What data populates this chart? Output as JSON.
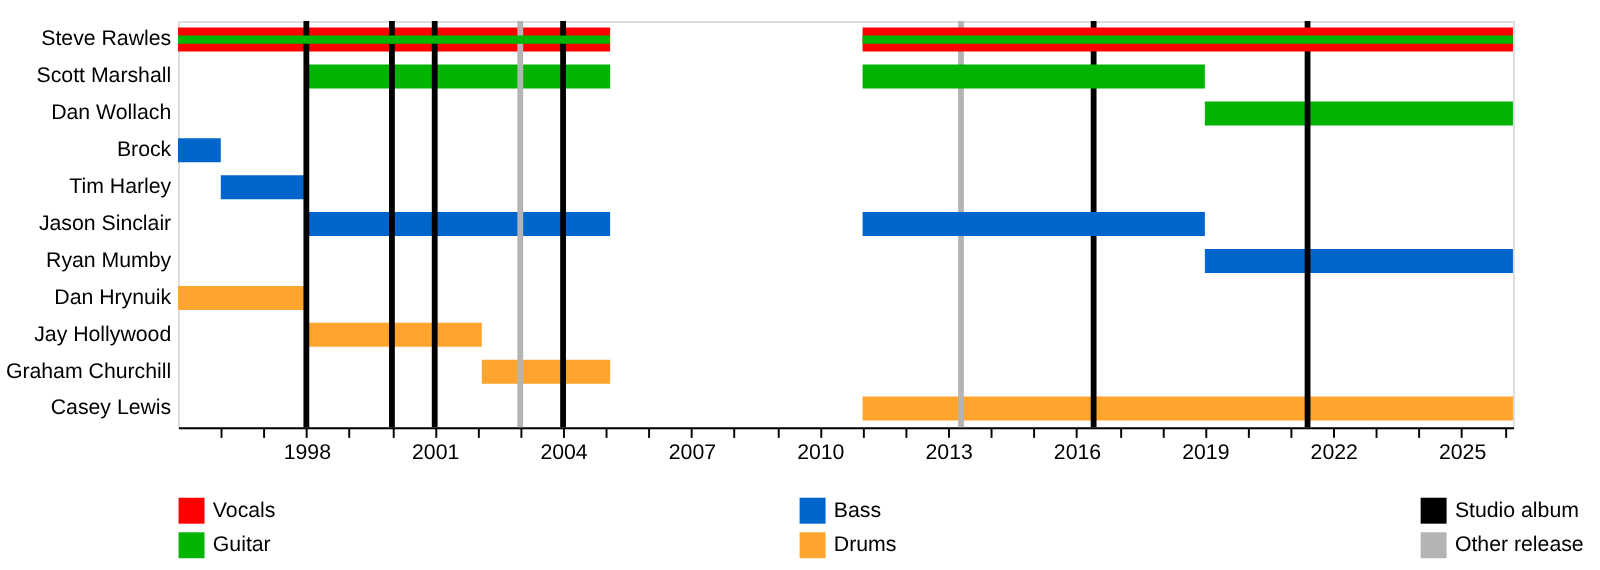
{
  "chart_data": {
    "type": "bar",
    "orientation": "horizontal",
    "legend": "bottom",
    "grid": false,
    "categories": [
      "Steve Rawles",
      "Scott Marshall",
      "Dan Wollach",
      "Brock",
      "Tim Harley",
      "Jason Sinclair",
      "Ryan Mumby",
      "Dan Hrynuik",
      "Jay Hollywood",
      "Graham Churchill",
      "Casey Lewis"
    ],
    "series": [
      {
        "name": "Vocals",
        "color": "#ff0000",
        "base": [
          1995,
          null,
          null,
          null,
          null,
          null,
          null,
          null,
          null,
          null,
          null
        ],
        "values": [
          10.1,
          null,
          null,
          null,
          null,
          null,
          null,
          null,
          null,
          null,
          null
        ]
      },
      {
        "color": "#ff0000",
        "base": [
          2011,
          null,
          null,
          null,
          null,
          null,
          null,
          null,
          null,
          null,
          null
        ],
        "values": [
          15.2,
          null,
          null,
          null,
          null,
          null,
          null,
          null,
          null,
          null,
          null
        ]
      },
      {
        "name": "Guitar",
        "color": "#00b400",
        "base": [
          1995,
          1998,
          2019,
          null,
          null,
          null,
          null,
          null,
          null,
          null,
          null
        ],
        "values": [
          10.1,
          7.1,
          7.2,
          null,
          null,
          null,
          null,
          null,
          null,
          null,
          null
        ]
      },
      {
        "color": "#00b400",
        "base": [
          2011,
          2011,
          null,
          null,
          null,
          null,
          null,
          null,
          null,
          null,
          null
        ],
        "values": [
          15.2,
          8,
          null,
          null,
          null,
          null,
          null,
          null,
          null,
          null,
          null
        ]
      },
      {
        "name": "Bass",
        "color": "#0066cc",
        "base": [
          null,
          null,
          null,
          1995,
          1996,
          1998,
          2019,
          null,
          null,
          null,
          null
        ],
        "values": [
          null,
          null,
          null,
          1,
          2,
          7.1,
          7.2,
          null,
          null,
          null,
          null
        ]
      },
      {
        "color": "#0066cc",
        "base": [
          null,
          null,
          null,
          null,
          null,
          2011,
          null,
          null,
          null,
          null,
          null
        ],
        "values": [
          null,
          null,
          null,
          null,
          null,
          8,
          null,
          null,
          null,
          null,
          null
        ]
      },
      {
        "name": "Drums",
        "color": "#ffa42c",
        "base": [
          null,
          null,
          null,
          null,
          null,
          null,
          null,
          1995,
          1998,
          2002.1,
          2011
        ],
        "values": [
          null,
          null,
          null,
          null,
          null,
          null,
          null,
          3,
          4.1,
          3,
          15.2
        ]
      }
    ],
    "ref_lines": [
      {
        "axis": "x",
        "value": 1998,
        "label": "Studio album",
        "color": "#000000"
      },
      {
        "axis": "x",
        "value": 2000,
        "color": "#000000"
      },
      {
        "axis": "x",
        "value": 2001,
        "color": "#000000"
      },
      {
        "axis": "x",
        "value": 2004,
        "color": "#000000"
      },
      {
        "axis": "x",
        "value": 2016.4,
        "color": "#000000"
      },
      {
        "axis": "x",
        "value": 2021.4,
        "color": "#000000"
      },
      {
        "axis": "x",
        "value": 2003,
        "label": "Other release",
        "color": "#b4b4b4"
      },
      {
        "axis": "x",
        "value": 2013.3,
        "color": "#b4b4b4"
      }
    ],
    "xlim": [
      1995,
      2026.2
    ],
    "xticks": [
      {
        "value": 1996,
        "label": null
      },
      {
        "value": 1997,
        "label": null
      },
      1998,
      {
        "value": 1999,
        "label": null
      },
      {
        "value": 2000,
        "label": null
      },
      2001,
      {
        "value": 2002,
        "label": null
      },
      {
        "value": 2003,
        "label": null
      },
      2004,
      {
        "value": 2005,
        "label": null
      },
      {
        "value": 2006,
        "label": null
      },
      2007,
      {
        "value": 2008,
        "label": null
      },
      {
        "value": 2009,
        "label": null
      },
      2010,
      {
        "value": 2011,
        "label": null
      },
      {
        "value": 2012,
        "label": null
      },
      2013,
      {
        "value": 2014,
        "label": null
      },
      {
        "value": 2015,
        "label": null
      },
      2016,
      {
        "value": 2017,
        "label": null
      },
      {
        "value": 2018,
        "label": null
      },
      2019,
      {
        "value": 2020,
        "label": null
      },
      {
        "value": 2021,
        "label": null
      },
      2022,
      {
        "value": 2023,
        "label": null
      },
      {
        "value": 2024,
        "label": null
      },
      2025,
      {
        "value": 2026,
        "label": null
      }
    ]
  }
}
